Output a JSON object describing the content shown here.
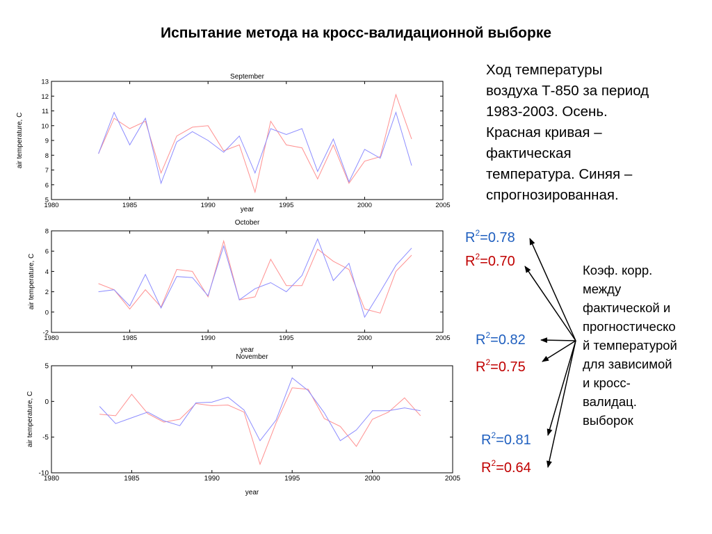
{
  "title": "Испытание метода на кросс-валидационной выборке",
  "description": [
    "Ход температуры",
    "воздуха Т-850 за период",
    "1983-2003. Осень.",
    "Красная кривая –",
    "фактическая",
    "температура. Синяя –",
    "спрогнозированная."
  ],
  "note": [
    "Коэф. корр.",
    "между",
    "фактической и",
    "прогностическо",
    "й температурой",
    "для зависимой",
    "и кросс-",
    "валидац.",
    "выборок"
  ],
  "r2": [
    {
      "base": "R",
      "sup": "2",
      "value": "=0.78"
    },
    {
      "base": "R",
      "sup": "2",
      "value": "=0.70"
    },
    {
      "base": "R",
      "sup": "2",
      "value": "=0.82"
    },
    {
      "base": "R",
      "sup": "2",
      "value": "=0.75"
    },
    {
      "base": "R",
      "sup": "2",
      "value": "=0.81"
    },
    {
      "base": "R",
      "sup": "2",
      "value": "=0.64"
    }
  ],
  "colors": {
    "actual": "#ff9090",
    "forecast": "#8c8cff",
    "blue_text": "#1f5fbf",
    "red_text": "#c00000"
  },
  "chart_data": [
    {
      "type": "line",
      "title": "September",
      "xlabel": "year",
      "ylabel": "air temperature, C",
      "xlim": [
        1980,
        2005
      ],
      "ylim": [
        5,
        13
      ],
      "x_ticks": [
        "1980",
        "1985",
        "1990",
        "1995",
        "2000",
        "2005"
      ],
      "y_ticks": [
        "5",
        "6",
        "7",
        "8",
        "9",
        "10",
        "11",
        "12",
        "13"
      ],
      "x": [
        1983,
        1984,
        1985,
        1986,
        1987,
        1988,
        1989,
        1990,
        1991,
        1992,
        1993,
        1994,
        1995,
        1996,
        1997,
        1998,
        1999,
        2000,
        2001,
        2002,
        2003
      ],
      "series": [
        {
          "values": [
            8.1,
            10.5,
            9.8,
            10.3,
            6.8,
            9.3,
            9.9,
            10.0,
            8.3,
            8.7,
            5.5,
            10.3,
            8.7,
            8.5,
            6.4,
            8.7,
            6.1,
            7.6,
            7.9,
            12.1,
            9.1
          ]
        },
        {
          "values": [
            8.1,
            10.9,
            8.7,
            10.5,
            6.1,
            8.9,
            9.6,
            9.0,
            8.2,
            9.3,
            6.8,
            9.8,
            9.4,
            9.8,
            6.9,
            9.1,
            6.2,
            8.4,
            7.8,
            10.9,
            7.3
          ]
        }
      ]
    },
    {
      "type": "line",
      "title": "October",
      "xlabel": "year",
      "ylabel": "air temperature, C",
      "xlim": [
        1980,
        2005
      ],
      "ylim": [
        -2,
        8
      ],
      "x_ticks": [
        "1980",
        "1985",
        "1990",
        "1995",
        "2000",
        "2005"
      ],
      "y_ticks": [
        "-2",
        "0",
        "2",
        "4",
        "6",
        "8"
      ],
      "x": [
        1983,
        1984,
        1985,
        1986,
        1987,
        1988,
        1989,
        1990,
        1991,
        1992,
        1993,
        1994,
        1995,
        1996,
        1997,
        1998,
        1999,
        2000,
        2001,
        2002,
        2003
      ],
      "series": [
        {
          "values": [
            2.8,
            2.2,
            0.3,
            2.2,
            0.5,
            4.2,
            4.0,
            1.5,
            7.0,
            1.2,
            1.5,
            5.2,
            2.6,
            2.6,
            6.2,
            5.0,
            4.2,
            0.3,
            -0.1,
            4.0,
            5.6
          ]
        },
        {
          "values": [
            2.0,
            2.2,
            0.6,
            3.7,
            0.4,
            3.5,
            3.4,
            1.6,
            6.5,
            1.2,
            2.3,
            2.9,
            2.0,
            3.6,
            7.2,
            3.1,
            4.8,
            -0.5,
            2.0,
            4.6,
            6.3
          ]
        }
      ]
    },
    {
      "type": "line",
      "title": "November",
      "xlabel": "year",
      "ylabel": "air temperature, C",
      "xlim": [
        1980,
        2005
      ],
      "ylim": [
        -10,
        5
      ],
      "x_ticks": [
        "1980",
        "1985",
        "1990",
        "1995",
        "2000",
        "2005"
      ],
      "y_ticks": [
        "-10",
        "-5",
        "0",
        "5"
      ],
      "x": [
        1983,
        1984,
        1985,
        1986,
        1987,
        1988,
        1989,
        1990,
        1991,
        1992,
        1993,
        1994,
        1995,
        1996,
        1997,
        1998,
        1999,
        2000,
        2001,
        2002,
        2003
      ],
      "series": [
        {
          "values": [
            -1.8,
            -2.0,
            1.0,
            -1.7,
            -2.9,
            -2.5,
            -0.3,
            -0.6,
            -0.5,
            -1.5,
            -8.8,
            -3.0,
            1.9,
            1.7,
            -2.4,
            -3.5,
            -6.3,
            -2.5,
            -1.5,
            0.5,
            -2.0
          ]
        },
        {
          "values": [
            -0.7,
            -3.1,
            -2.3,
            -1.5,
            -2.7,
            -3.4,
            -0.2,
            -0.1,
            0.6,
            -1.2,
            -5.5,
            -2.6,
            3.3,
            1.5,
            -1.6,
            -5.5,
            -4.0,
            -1.3,
            -1.3,
            -0.9,
            -1.3
          ]
        }
      ]
    }
  ]
}
